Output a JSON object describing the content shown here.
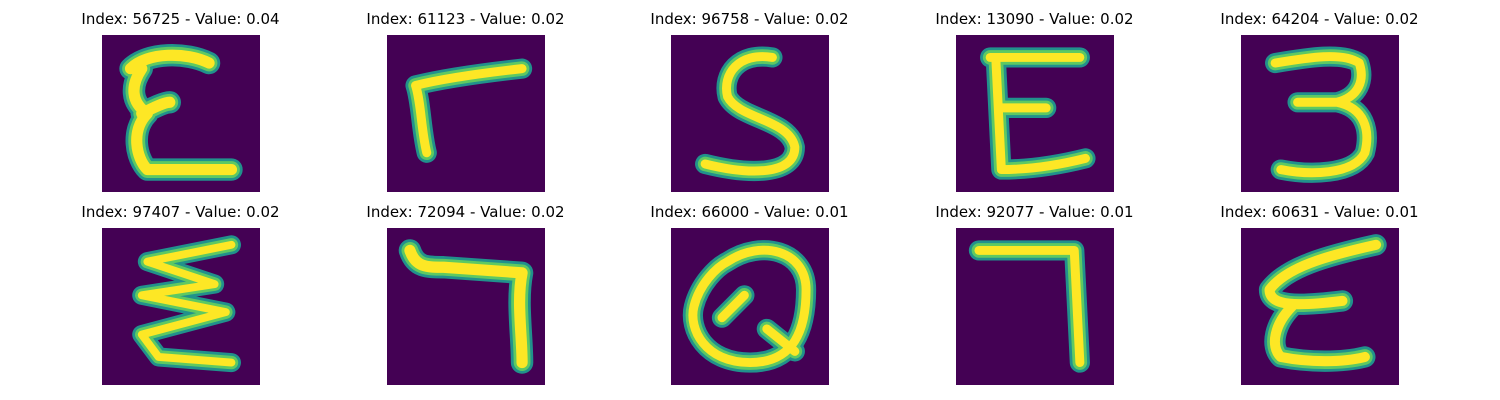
{
  "figure": {
    "panels": [
      {
        "title": "Index: 56725 - Value: 0.04",
        "glyph": "E",
        "style": "bold"
      },
      {
        "title": "Index: 61123 - Value: 0.02",
        "glyph": "r",
        "style": "normal"
      },
      {
        "title": "Index: 96758 - Value: 0.02",
        "glyph": "S",
        "style": "normal"
      },
      {
        "title": "Index: 13090 - Value: 0.02",
        "glyph": "E",
        "style": "normal"
      },
      {
        "title": "Index: 64204 - Value: 0.02",
        "glyph": "3",
        "style": "normal"
      },
      {
        "title": "Index: 97407 - Value: 0.02",
        "glyph": "zigzag-E",
        "style": "normal"
      },
      {
        "title": "Index: 72094 - Value: 0.02",
        "glyph": "7-hook",
        "style": "normal"
      },
      {
        "title": "Index: 66000 - Value: 0.01",
        "glyph": "Q",
        "style": "normal"
      },
      {
        "title": "Index: 92077 - Value: 0.01",
        "glyph": "7",
        "style": "normal"
      },
      {
        "title": "Index: 60631 - Value: 0.01",
        "glyph": "E-slant",
        "style": "normal"
      }
    ],
    "colors": {
      "background": "#440154",
      "stroke_outer": "#21918c",
      "stroke_mid": "#5ec962",
      "stroke_core": "#fde725"
    }
  }
}
